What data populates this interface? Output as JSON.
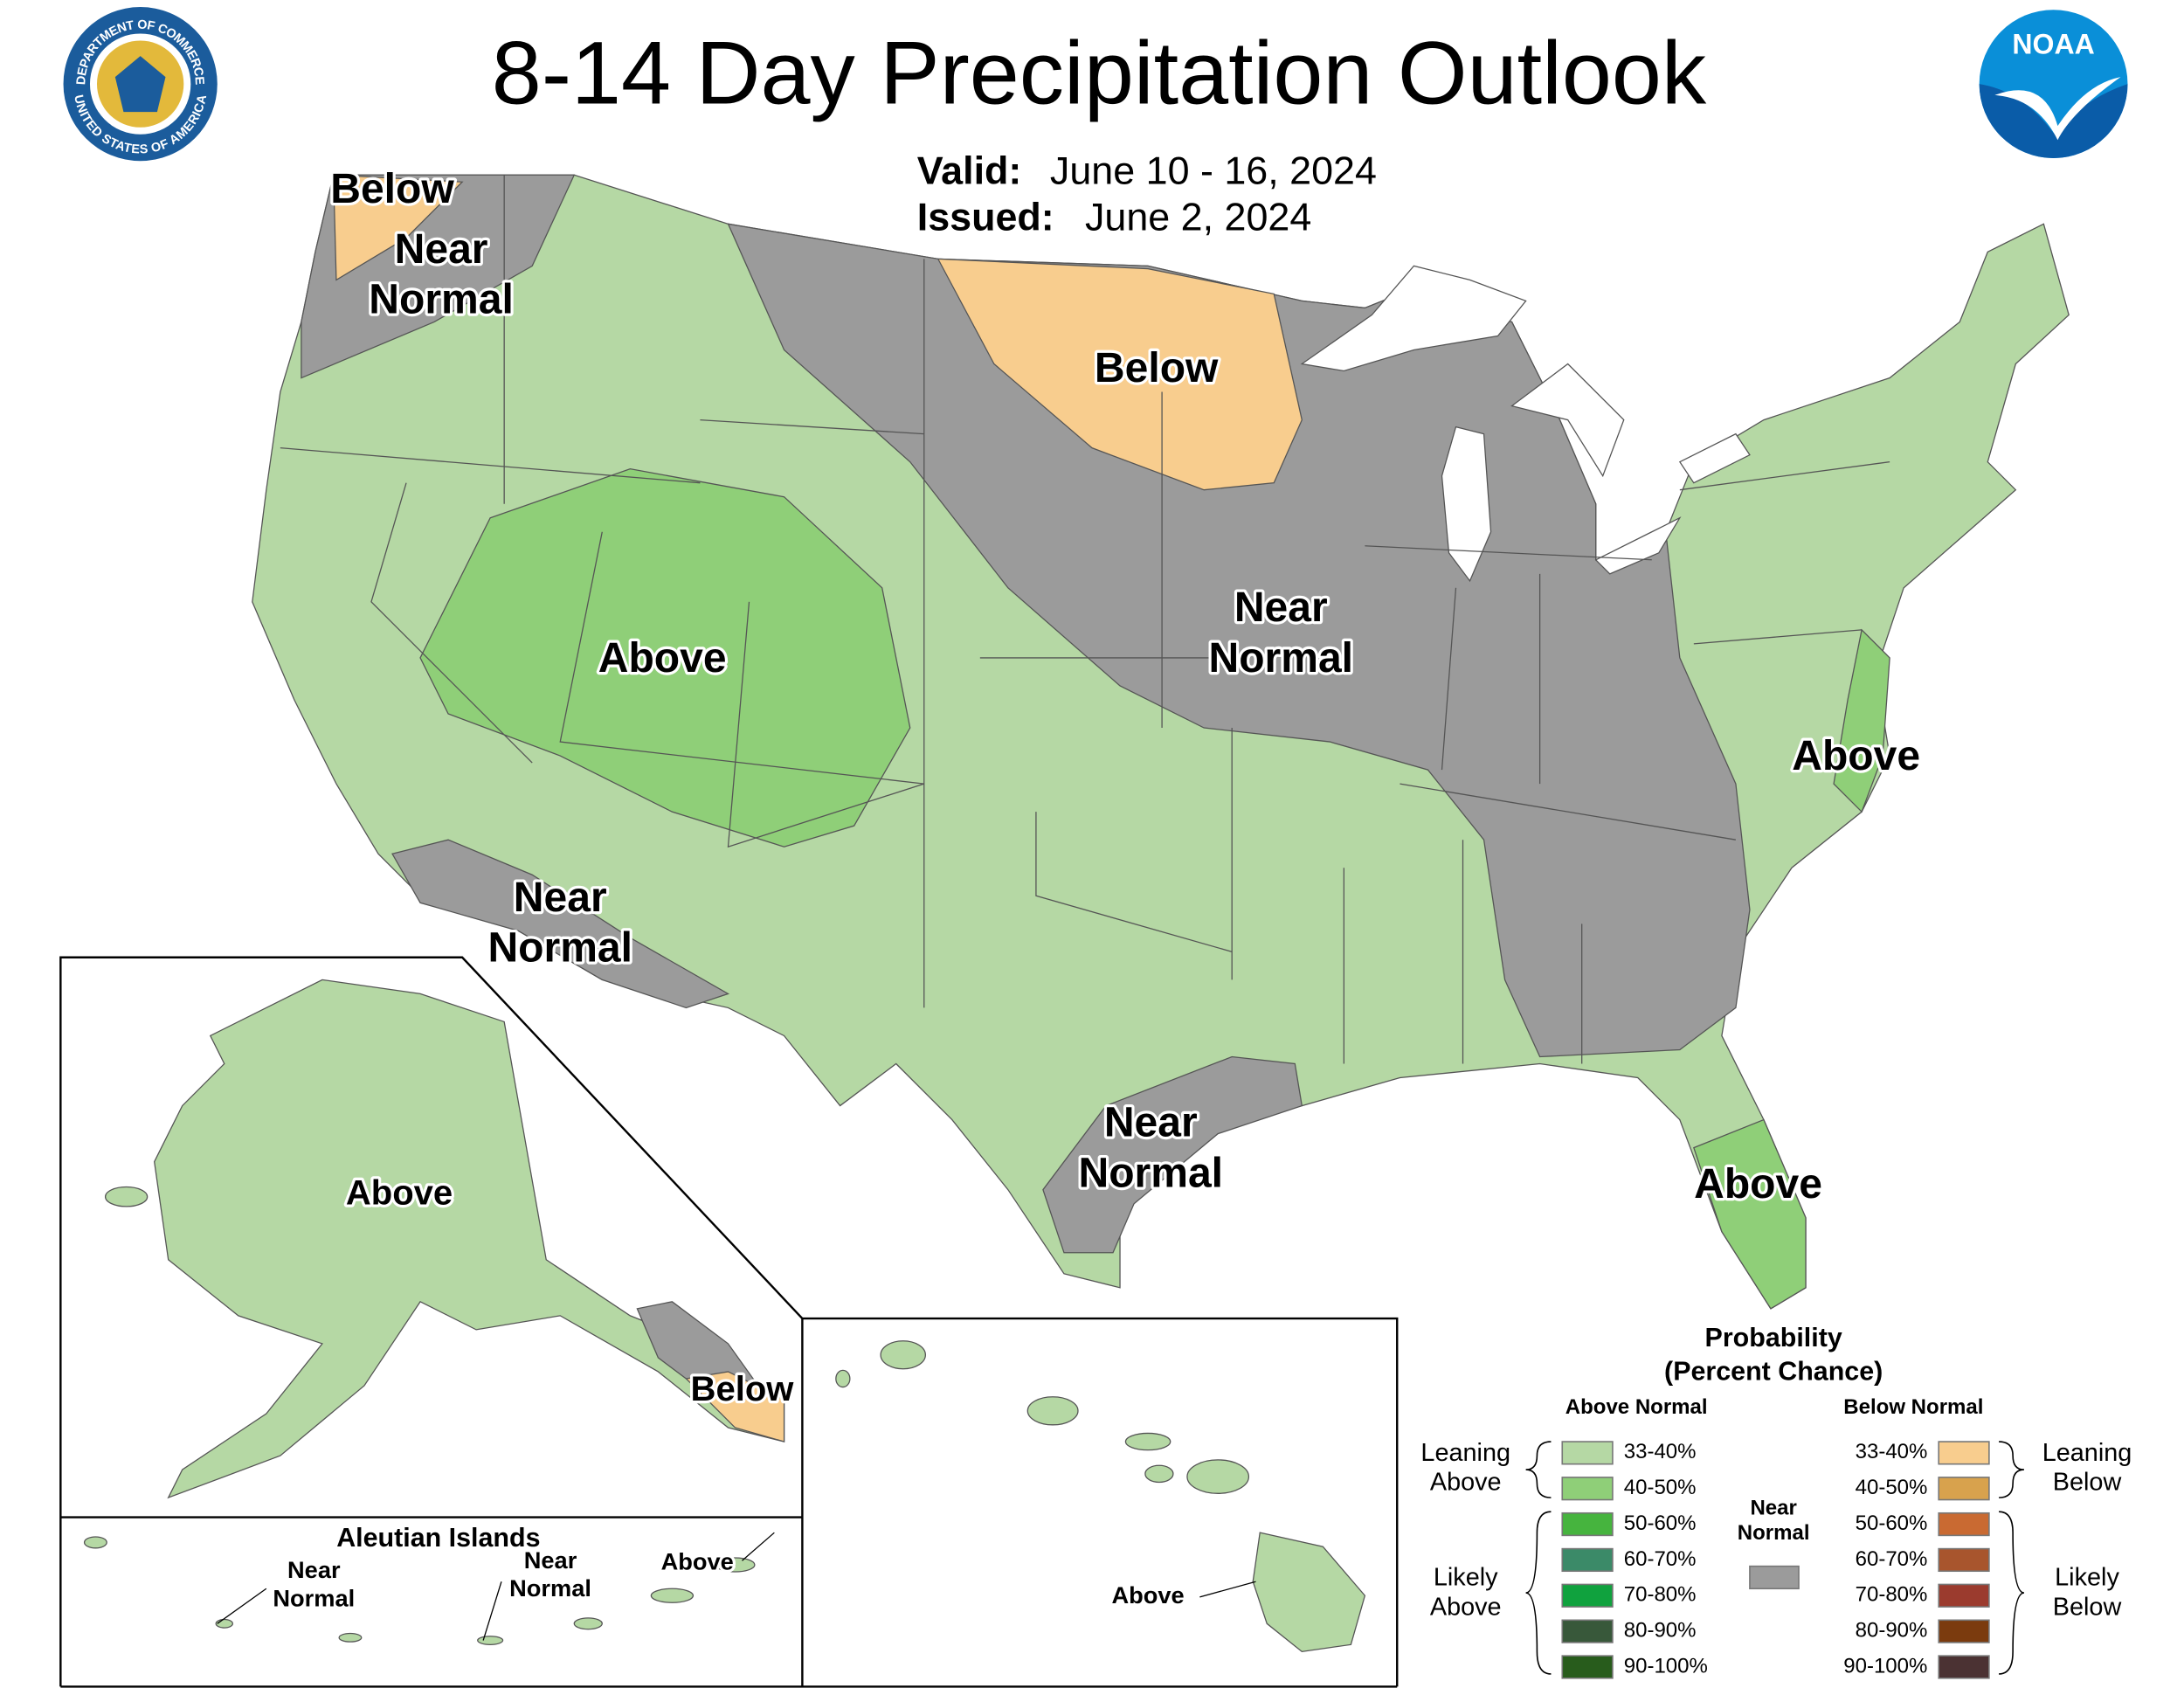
{
  "header": {
    "title": "8-14 Day Precipitation Outlook",
    "valid_label": "Valid:",
    "valid": "June 10 - 16, 2024",
    "issued_label": "Issued:",
    "issued": "June 2, 2024"
  },
  "logos": {
    "commerce_top": "DEPARTMENT OF COMMERCE",
    "commerce_bottom": "UNITED STATES OF AMERICA",
    "noaa": "NOAA"
  },
  "regions": [
    {
      "lines": [
        "Below"
      ]
    },
    {
      "lines": [
        "Near",
        "Normal"
      ]
    },
    {
      "lines": [
        "Below"
      ]
    },
    {
      "lines": [
        "Near",
        "Normal"
      ]
    },
    {
      "lines": [
        "Above"
      ]
    },
    {
      "lines": [
        "Above"
      ]
    },
    {
      "lines": [
        "Near",
        "Normal"
      ]
    },
    {
      "lines": [
        "Near",
        "Normal"
      ]
    },
    {
      "lines": [
        "Above"
      ]
    },
    {
      "lines": [
        "Above"
      ]
    },
    {
      "lines": [
        "Below"
      ]
    },
    {
      "lines": [
        "Near",
        "Normal"
      ]
    },
    {
      "lines": [
        "Near",
        "Normal"
      ]
    },
    {
      "lines": [
        "Above"
      ]
    },
    {
      "lines": [
        "Above"
      ]
    }
  ],
  "insets": {
    "aleutian_title": "Aleutian Islands"
  },
  "legend": {
    "title": "Probability",
    "subtitle": "(Percent Chance)",
    "above_header": "Above Normal",
    "below_header": "Below Normal",
    "above_items": [
      {
        "range": "33-40%",
        "color": "#b5d8a4"
      },
      {
        "range": "40-50%",
        "color": "#8fcf78"
      },
      {
        "range": "50-60%",
        "color": "#46b43e"
      },
      {
        "range": "60-70%",
        "color": "#3b8a68"
      },
      {
        "range": "70-80%",
        "color": "#10a23e"
      },
      {
        "range": "80-90%",
        "color": "#38583a"
      },
      {
        "range": "90-100%",
        "color": "#285c1c"
      }
    ],
    "below_items": [
      {
        "range": "33-40%",
        "color": "#f8cd8e"
      },
      {
        "range": "40-50%",
        "color": "#d8a24d"
      },
      {
        "range": "50-60%",
        "color": "#c96a32"
      },
      {
        "range": "60-70%",
        "color": "#a8552d"
      },
      {
        "range": "70-80%",
        "color": "#9b3b2e"
      },
      {
        "range": "80-90%",
        "color": "#7b3b0e"
      },
      {
        "range": "90-100%",
        "color": "#4b3233"
      }
    ],
    "near_normal": {
      "lines": [
        "Near",
        "Normal"
      ],
      "color": "#9b9b9b"
    },
    "leaning_above": [
      "Leaning",
      "Above"
    ],
    "likely_above": [
      "Likely",
      "Above"
    ],
    "leaning_below": [
      "Leaning",
      "Below"
    ],
    "likely_below": [
      "Likely",
      "Below"
    ]
  }
}
